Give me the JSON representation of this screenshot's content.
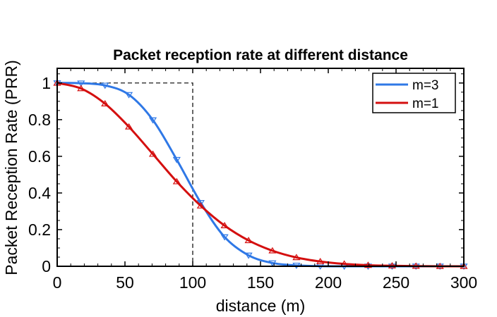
{
  "chart_data": {
    "type": "line",
    "title": "Packet reception rate at different distance",
    "xlabel": "distance (m)",
    "ylabel": "Packet Reception Rate (PRR)",
    "xlim": [
      0,
      300
    ],
    "ylim": [
      0,
      1.08
    ],
    "x_ticks": [
      0,
      50,
      100,
      150,
      200,
      250,
      300
    ],
    "x_tick_labels": [
      "0",
      "50",
      "100",
      "150",
      "200",
      "250",
      "300"
    ],
    "y_ticks": [
      0,
      0.2,
      0.4,
      0.6,
      0.8,
      1
    ],
    "y_tick_labels": [
      "0",
      "0.2",
      "0.4",
      "0.6",
      "0.8",
      "1"
    ],
    "grid": false,
    "legend_position": "top-right",
    "reference_lines": [
      {
        "style": "dashed",
        "color": "#000000",
        "x": [
          0,
          100,
          100
        ],
        "y": [
          1,
          1,
          0
        ]
      }
    ],
    "series": [
      {
        "name": "m=3",
        "color": "#2f78e6",
        "marker": "triangle-down",
        "x": [
          0,
          17.6,
          35.3,
          52.9,
          70.6,
          88.2,
          105.9,
          123.5,
          141.2,
          158.8,
          176.5,
          194.1,
          211.8,
          229.4,
          247.1,
          264.7,
          282.4,
          300
        ],
        "y": [
          1.0,
          0.999,
          0.987,
          0.936,
          0.798,
          0.582,
          0.347,
          0.16,
          0.06,
          0.018,
          0.005,
          0.001,
          0.0,
          0.0,
          0.0,
          0.0,
          0.0,
          0.0
        ]
      },
      {
        "name": "m=1",
        "color": "#d40f0f",
        "marker": "triangle-up",
        "x": [
          0,
          17.6,
          35.3,
          52.9,
          70.6,
          88.2,
          105.9,
          123.5,
          141.2,
          158.8,
          176.5,
          194.1,
          211.8,
          229.4,
          247.1,
          264.7,
          282.4,
          300
        ],
        "y": [
          1.0,
          0.97,
          0.887,
          0.761,
          0.612,
          0.462,
          0.33,
          0.222,
          0.141,
          0.085,
          0.048,
          0.026,
          0.013,
          0.006,
          0.003,
          0.001,
          0.0,
          0.0
        ]
      }
    ]
  }
}
